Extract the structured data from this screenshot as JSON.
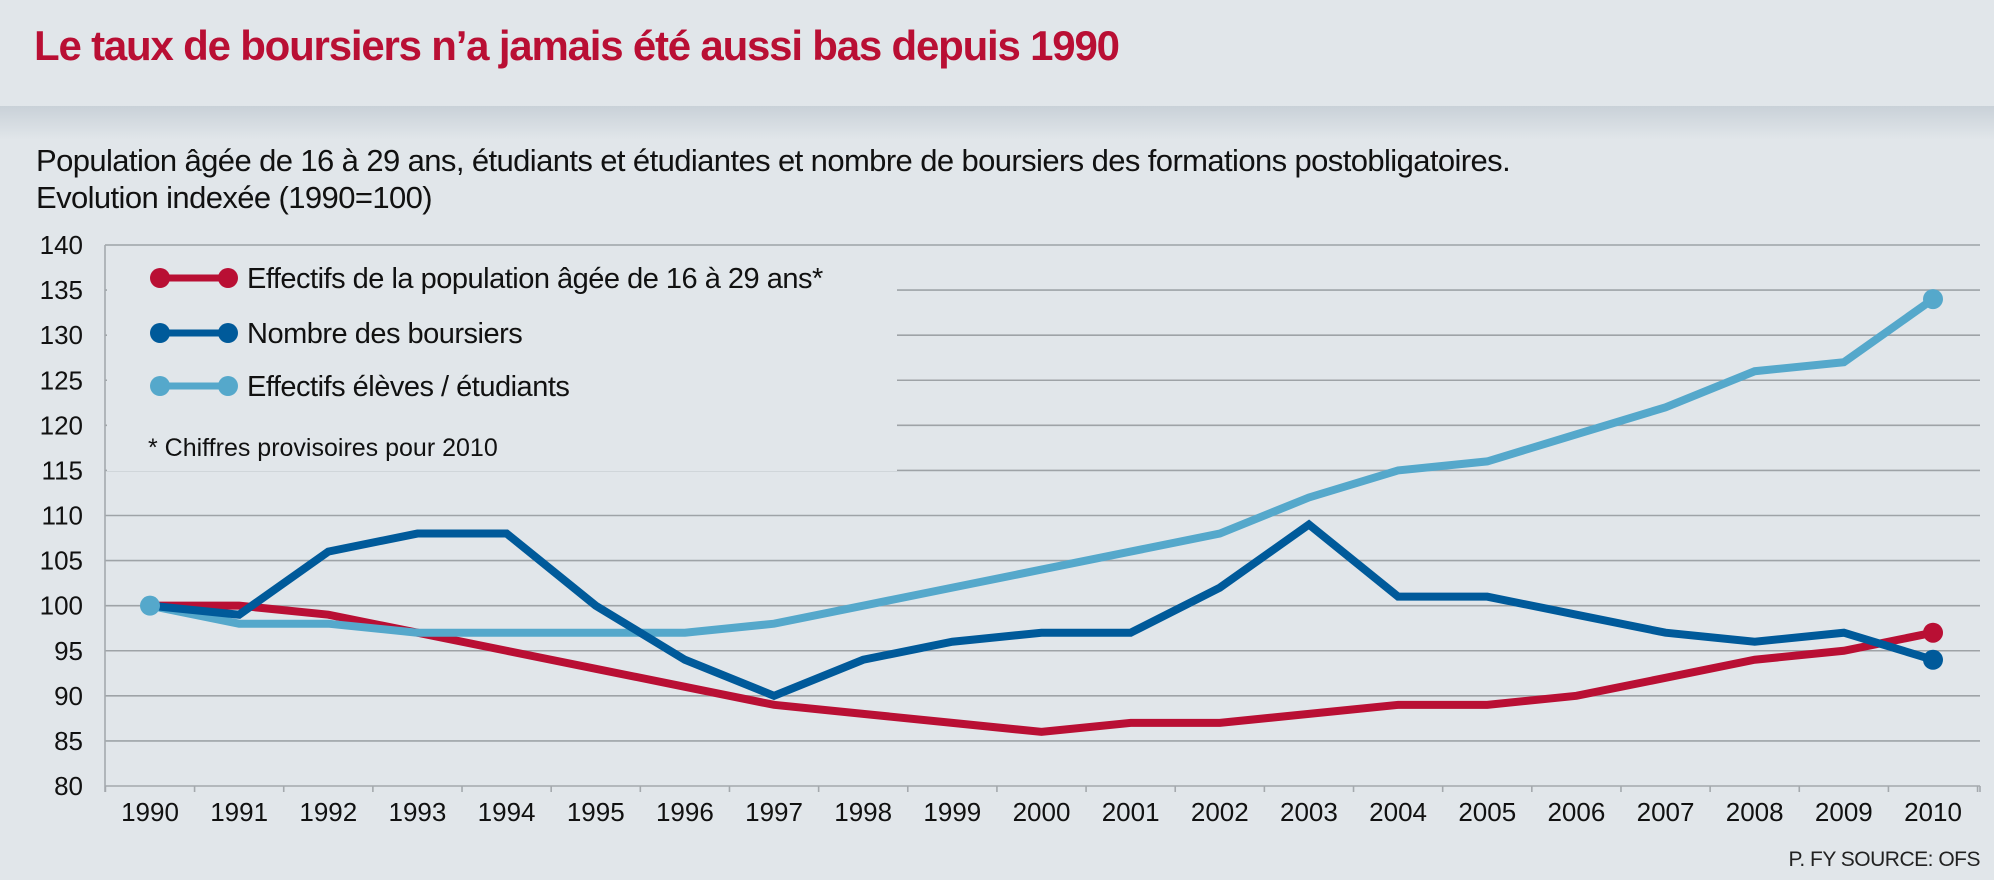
{
  "header": {
    "title": "Le taux de boursiers n’a jamais été aussi bas depuis 1990"
  },
  "subtitle": {
    "line1": "Population âgée de 16 à 29 ans, étudiants et étudiantes et nombre de boursiers des formations postobligatoires.",
    "line2": "Evolution indexée (1990=100)"
  },
  "footer": {
    "source": "P. FY SOURCE: OFS"
  },
  "chart_data": {
    "type": "line",
    "title": "Le taux de boursiers n’a jamais été aussi bas depuis 1990",
    "subtitle": "Population âgée de 16 à 29 ans, étudiants et étudiantes et nombre de boursiers des formations postobligatoires. Evolution indexée (1990=100)",
    "xlabel": "",
    "ylabel": "",
    "x": [
      "1990",
      "1991",
      "1992",
      "1993",
      "1994",
      "1995",
      "1996",
      "1997",
      "1998",
      "1999",
      "2000",
      "2001",
      "2002",
      "2003",
      "2004",
      "2005",
      "2006",
      "2007",
      "2008",
      "2009",
      "2010"
    ],
    "ylim": [
      80,
      140
    ],
    "yticks": [
      80,
      85,
      90,
      95,
      100,
      105,
      110,
      115,
      120,
      125,
      130,
      135,
      140
    ],
    "grid": true,
    "legend_position": "top-left",
    "note": "* Chiffres provisoires pour 2010",
    "series": [
      {
        "name": "Effectifs de la population âgée de 16 à 29 ans*",
        "color": "#b90f34",
        "values": [
          100,
          100,
          99,
          97,
          95,
          93,
          91,
          89,
          88,
          87,
          86,
          87,
          87,
          88,
          89,
          89,
          90,
          92,
          94,
          95,
          97
        ]
      },
      {
        "name": "Nombre des boursiers",
        "color": "#005a9a",
        "values": [
          100,
          99,
          106,
          108,
          108,
          100,
          94,
          90,
          94,
          96,
          97,
          97,
          102,
          109,
          101,
          101,
          99,
          97,
          96,
          97,
          94
        ]
      },
      {
        "name": "Effectifs élèves / étudiants",
        "color": "#55a8cb",
        "values": [
          100,
          98,
          98,
          97,
          97,
          97,
          97,
          98,
          100,
          102,
          104,
          106,
          108,
          112,
          115,
          116,
          119,
          122,
          126,
          127,
          134
        ]
      }
    ]
  }
}
